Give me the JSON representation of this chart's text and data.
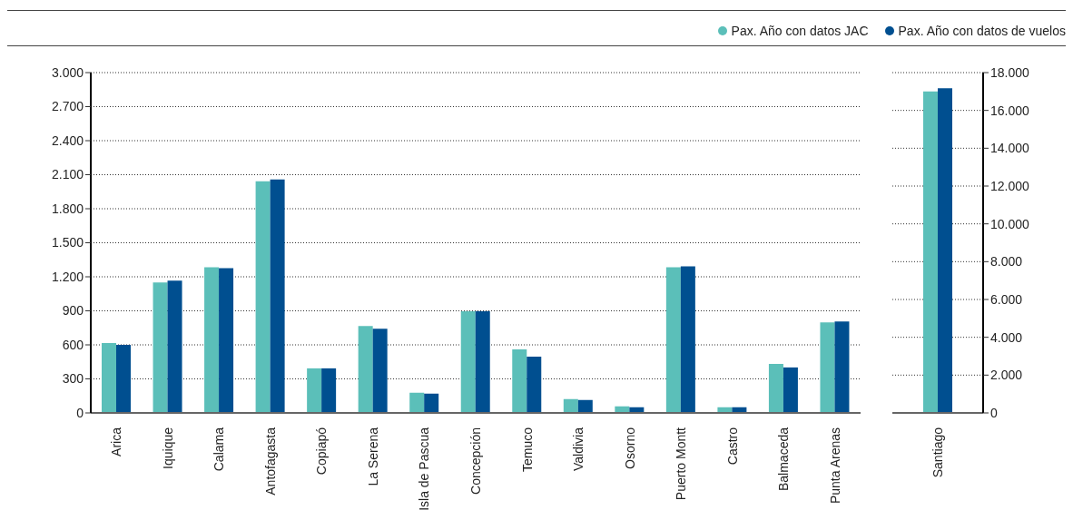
{
  "chart_data": [
    {
      "type": "bar",
      "categories": [
        "Arica",
        "Iquique",
        "Calama",
        "Antofagasta",
        "Copiapó",
        "La Serena",
        "Isla de Pascua",
        "Concepción",
        "Temuco",
        "Valdivia",
        "Osorno",
        "Puerto Montt",
        "Castro",
        "Balmaceda",
        "Punta Arenas"
      ],
      "series": [
        {
          "name": "Pax. Año con datos JAC",
          "color": "#5bbfb9",
          "values": [
            616,
            1150,
            1285,
            2042,
            393,
            767,
            178,
            897,
            560,
            122,
            58,
            1285,
            50,
            433,
            799
          ]
        },
        {
          "name": "Pax. Año con datos de vuelos",
          "color": "#004f90",
          "values": [
            600,
            1166,
            1277,
            2058,
            393,
            743,
            170,
            897,
            496,
            114,
            50,
            1293,
            50,
            401,
            807
          ]
        }
      ],
      "ylim": [
        0,
        3000
      ],
      "yticks": [
        0,
        300,
        600,
        900,
        {
          "value": 1200,
          "label": "1.200"
        },
        {
          "value": 1500,
          "label": "1.500"
        },
        {
          "value": 1800,
          "label": "1.800"
        },
        {
          "value": 2100,
          "label": "2.100"
        },
        {
          "value": 2400,
          "label": "2.400"
        },
        {
          "value": 2700,
          "label": "2.700"
        },
        {
          "value": 3000,
          "label": "3.000"
        }
      ],
      "grid": "y",
      "legend": "top right"
    },
    {
      "type": "bar",
      "categories": [
        "Santiago"
      ],
      "series": [
        {
          "color": "#5bbfb9",
          "values": [
            17000
          ]
        },
        {
          "color": "#004f90",
          "values": [
            17170
          ]
        }
      ],
      "ylim": [
        0,
        18000
      ],
      "yticks": [
        0,
        {
          "value": 2000,
          "label": "2.000"
        },
        {
          "value": 4000,
          "label": "4.000"
        },
        {
          "value": 6000,
          "label": "6.000"
        },
        {
          "value": 8000,
          "label": "8.000"
        },
        {
          "value": 10000,
          "label": "10.000"
        },
        {
          "value": 12000,
          "label": "12.000"
        },
        {
          "value": 14000,
          "label": "14.000"
        },
        {
          "value": 16000,
          "label": "16.000"
        },
        {
          "value": 18000,
          "label": "18.000"
        }
      ],
      "grid": "y"
    }
  ]
}
